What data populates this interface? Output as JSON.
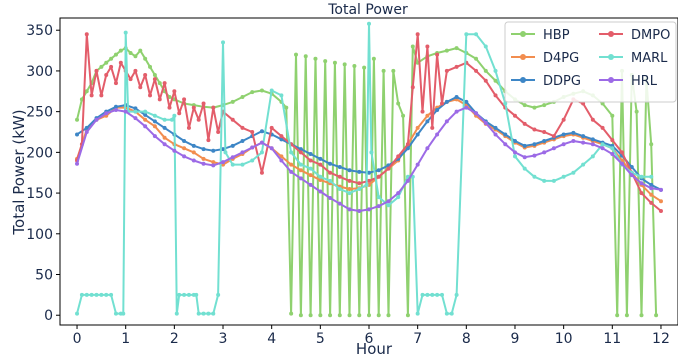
{
  "chart_data": {
    "type": "line",
    "title": "Total Power",
    "xlabel": "Hour",
    "ylabel": "Total Power (kW)",
    "xlim": [
      -0.35,
      12.35
    ],
    "ylim": [
      -12,
      365
    ],
    "xticks": [
      0,
      1,
      2,
      3,
      4,
      5,
      6,
      7,
      8,
      9,
      10,
      11,
      12
    ],
    "yticks": [
      0,
      50,
      100,
      150,
      200,
      250,
      300,
      350
    ],
    "grid": false,
    "legend": {
      "position": "top-right",
      "columns": 2
    },
    "series": [
      {
        "name": "HBP",
        "color": "#8fd16f",
        "x": [
          0,
          0.1,
          0.2,
          0.3,
          0.4,
          0.5,
          0.6,
          0.7,
          0.8,
          0.9,
          1.0,
          1.1,
          1.2,
          1.3,
          1.4,
          1.5,
          1.6,
          1.7,
          1.8,
          1.9,
          2.0,
          2.2,
          2.4,
          2.6,
          2.8,
          3.0,
          3.2,
          3.4,
          3.6,
          3.8,
          4.0,
          4.2,
          4.3,
          4.4,
          4.5,
          4.6,
          4.7,
          4.8,
          4.9,
          5.0,
          5.1,
          5.2,
          5.3,
          5.4,
          5.5,
          5.6,
          5.7,
          5.8,
          5.9,
          6.0,
          6.1,
          6.2,
          6.3,
          6.4,
          6.5,
          6.6,
          6.7,
          6.8,
          6.9,
          7.0,
          7.2,
          7.4,
          7.6,
          7.8,
          8.0,
          8.2,
          8.4,
          8.6,
          8.8,
          9.0,
          9.2,
          9.4,
          9.6,
          9.8,
          10.0,
          10.2,
          10.4,
          10.6,
          10.8,
          11.0,
          11.1,
          11.2,
          11.3,
          11.4,
          11.5,
          11.6,
          11.7,
          11.8,
          11.9
        ],
        "values": [
          240,
          265,
          275,
          285,
          300,
          305,
          310,
          315,
          320,
          325,
          328,
          322,
          318,
          325,
          315,
          305,
          295,
          285,
          275,
          268,
          265,
          260,
          258,
          256,
          255,
          258,
          262,
          268,
          274,
          276,
          272,
          262,
          255,
          2,
          320,
          0,
          318,
          0,
          315,
          0,
          312,
          0,
          310,
          0,
          308,
          0,
          306,
          0,
          304,
          0,
          315,
          0,
          300,
          0,
          300,
          260,
          245,
          0,
          330,
          310,
          318,
          322,
          325,
          328,
          322,
          315,
          300,
          288,
          275,
          265,
          258,
          255,
          258,
          262,
          268,
          272,
          275,
          270,
          260,
          245,
          0,
          300,
          0,
          295,
          250,
          0,
          290,
          210,
          0
        ]
      },
      {
        "name": "D4PG",
        "color": "#f28d4f",
        "x": [
          0,
          0.2,
          0.4,
          0.6,
          0.8,
          1.0,
          1.2,
          1.4,
          1.6,
          1.8,
          2.0,
          2.2,
          2.4,
          2.6,
          2.8,
          3.0,
          3.2,
          3.4,
          3.6,
          3.8,
          4.0,
          4.2,
          4.4,
          4.6,
          4.8,
          5.0,
          5.2,
          5.4,
          5.6,
          5.8,
          6.0,
          6.2,
          6.4,
          6.6,
          6.8,
          7.0,
          7.2,
          7.4,
          7.6,
          7.8,
          8.0,
          8.2,
          8.4,
          8.6,
          8.8,
          9.0,
          9.2,
          9.4,
          9.6,
          9.8,
          10.0,
          10.2,
          10.4,
          10.6,
          10.8,
          11.0,
          11.2,
          11.4,
          11.6,
          11.8,
          12.0
        ],
        "values": [
          192,
          228,
          240,
          245,
          255,
          255,
          250,
          240,
          232,
          218,
          210,
          205,
          200,
          192,
          188,
          185,
          192,
          198,
          206,
          212,
          205,
          195,
          185,
          178,
          172,
          166,
          162,
          158,
          155,
          156,
          160,
          170,
          180,
          190,
          210,
          230,
          245,
          255,
          262,
          265,
          258,
          245,
          235,
          228,
          220,
          212,
          206,
          208,
          212,
          216,
          220,
          222,
          218,
          214,
          210,
          205,
          190,
          175,
          160,
          148,
          140
        ]
      },
      {
        "name": "DDPG",
        "color": "#3d86c6",
        "x": [
          0,
          0.2,
          0.4,
          0.6,
          0.8,
          1.0,
          1.2,
          1.4,
          1.6,
          1.8,
          2.0,
          2.2,
          2.4,
          2.6,
          2.8,
          3.0,
          3.2,
          3.4,
          3.6,
          3.8,
          4.0,
          4.2,
          4.4,
          4.6,
          4.8,
          5.0,
          5.2,
          5.4,
          5.6,
          5.8,
          6.0,
          6.2,
          6.4,
          6.6,
          6.8,
          7.0,
          7.2,
          7.4,
          7.6,
          7.8,
          8.0,
          8.2,
          8.4,
          8.6,
          8.8,
          9.0,
          9.2,
          9.4,
          9.6,
          9.8,
          10.0,
          10.2,
          10.4,
          10.6,
          10.8,
          11.0,
          11.2,
          11.4,
          11.6,
          11.8,
          12.0
        ],
        "values": [
          222,
          230,
          242,
          250,
          256,
          258,
          254,
          246,
          238,
          230,
          222,
          214,
          208,
          204,
          202,
          204,
          208,
          214,
          220,
          226,
          222,
          216,
          210,
          204,
          198,
          192,
          186,
          182,
          178,
          176,
          175,
          178,
          184,
          192,
          205,
          222,
          238,
          252,
          262,
          268,
          262,
          248,
          238,
          230,
          222,
          214,
          208,
          210,
          214,
          218,
          222,
          224,
          220,
          216,
          212,
          208,
          196,
          182,
          168,
          160,
          154
        ]
      },
      {
        "name": "DMPO",
        "color": "#e35d6a",
        "x": [
          0,
          0.1,
          0.2,
          0.3,
          0.4,
          0.5,
          0.6,
          0.7,
          0.8,
          0.9,
          1.0,
          1.1,
          1.2,
          1.3,
          1.4,
          1.5,
          1.6,
          1.7,
          1.8,
          1.9,
          2.0,
          2.1,
          2.2,
          2.3,
          2.4,
          2.5,
          2.6,
          2.7,
          2.8,
          2.9,
          3.0,
          3.2,
          3.4,
          3.6,
          3.8,
          4.0,
          4.2,
          4.4,
          4.6,
          4.8,
          5.0,
          5.2,
          5.4,
          5.6,
          5.8,
          6.0,
          6.2,
          6.4,
          6.6,
          6.8,
          6.9,
          7.0,
          7.1,
          7.2,
          7.3,
          7.4,
          7.5,
          7.6,
          7.8,
          8.0,
          8.2,
          8.4,
          8.6,
          8.8,
          9.0,
          9.2,
          9.4,
          9.6,
          9.8,
          10.0,
          10.2,
          10.4,
          10.6,
          10.8,
          11.0,
          11.2,
          11.4,
          11.6,
          11.8,
          12.0
        ],
        "values": [
          190,
          210,
          345,
          270,
          300,
          270,
          295,
          305,
          285,
          310,
          300,
          290,
          300,
          280,
          295,
          270,
          290,
          265,
          285,
          255,
          275,
          248,
          265,
          230,
          255,
          240,
          260,
          215,
          255,
          225,
          250,
          240,
          230,
          225,
          175,
          230,
          220,
          210,
          200,
          190,
          185,
          175,
          170,
          165,
          162,
          165,
          170,
          180,
          195,
          210,
          280,
          345,
          250,
          330,
          230,
          320,
          260,
          300,
          305,
          310,
          300,
          288,
          270,
          255,
          245,
          235,
          228,
          225,
          220,
          240,
          265,
          260,
          240,
          230,
          215,
          200,
          175,
          150,
          138,
          128
        ]
      },
      {
        "name": "MARL",
        "color": "#72e0d1",
        "x": [
          0,
          0.1,
          0.2,
          0.3,
          0.4,
          0.5,
          0.6,
          0.7,
          0.8,
          0.9,
          0.95,
          1.0,
          1.05,
          1.2,
          1.4,
          1.6,
          1.8,
          1.95,
          2.0,
          2.05,
          2.1,
          2.2,
          2.3,
          2.4,
          2.45,
          2.5,
          2.6,
          2.7,
          2.8,
          2.9,
          3.0,
          3.05,
          3.2,
          3.4,
          3.6,
          3.8,
          4.0,
          4.2,
          4.4,
          4.6,
          4.8,
          5.0,
          5.2,
          5.4,
          5.6,
          5.8,
          5.95,
          6.0,
          6.05,
          6.2,
          6.4,
          6.6,
          6.8,
          6.9,
          7.0,
          7.1,
          7.2,
          7.3,
          7.4,
          7.5,
          7.6,
          7.7,
          7.8,
          8.0,
          8.2,
          8.4,
          8.6,
          8.8,
          9.0,
          9.2,
          9.4,
          9.6,
          9.8,
          10.0,
          10.2,
          10.4,
          10.6,
          10.8,
          11.0,
          11.2,
          11.4,
          11.6,
          11.8
        ],
        "values": [
          2,
          25,
          25,
          25,
          25,
          25,
          25,
          25,
          2,
          2,
          2,
          347,
          250,
          250,
          250,
          245,
          240,
          240,
          245,
          2,
          25,
          25,
          25,
          25,
          25,
          2,
          2,
          2,
          2,
          25,
          335,
          200,
          185,
          185,
          190,
          200,
          276,
          270,
          200,
          185,
          180,
          170,
          165,
          155,
          150,
          155,
          160,
          358,
          200,
          145,
          135,
          145,
          170,
          170,
          2,
          25,
          25,
          25,
          25,
          25,
          2,
          2,
          25,
          345,
          345,
          330,
          300,
          260,
          195,
          180,
          170,
          165,
          165,
          170,
          175,
          185,
          195,
          210,
          205,
          185,
          175,
          170,
          170
        ]
      },
      {
        "name": "HRL",
        "color": "#9c6ae6",
        "x": [
          0,
          0.2,
          0.4,
          0.6,
          0.8,
          1.0,
          1.2,
          1.4,
          1.6,
          1.8,
          2.0,
          2.2,
          2.4,
          2.6,
          2.8,
          3.0,
          3.2,
          3.4,
          3.6,
          3.8,
          4.0,
          4.2,
          4.4,
          4.6,
          4.8,
          5.0,
          5.2,
          5.4,
          5.6,
          5.8,
          6.0,
          6.2,
          6.4,
          6.6,
          6.8,
          7.0,
          7.2,
          7.4,
          7.6,
          7.8,
          8.0,
          8.2,
          8.4,
          8.6,
          8.8,
          9.0,
          9.2,
          9.4,
          9.6,
          9.8,
          10.0,
          10.2,
          10.4,
          10.6,
          10.8,
          11.0,
          11.2,
          11.4,
          11.6,
          11.8,
          12.0
        ],
        "values": [
          186,
          225,
          240,
          248,
          252,
          250,
          242,
          232,
          220,
          210,
          202,
          195,
          190,
          186,
          184,
          188,
          194,
          200,
          206,
          212,
          205,
          190,
          176,
          168,
          160,
          152,
          144,
          137,
          130,
          128,
          130,
          134,
          140,
          150,
          165,
          185,
          205,
          222,
          238,
          250,
          255,
          248,
          236,
          222,
          210,
          200,
          194,
          196,
          200,
          205,
          210,
          214,
          212,
          210,
          205,
          198,
          186,
          172,
          162,
          156,
          154
        ]
      }
    ]
  }
}
